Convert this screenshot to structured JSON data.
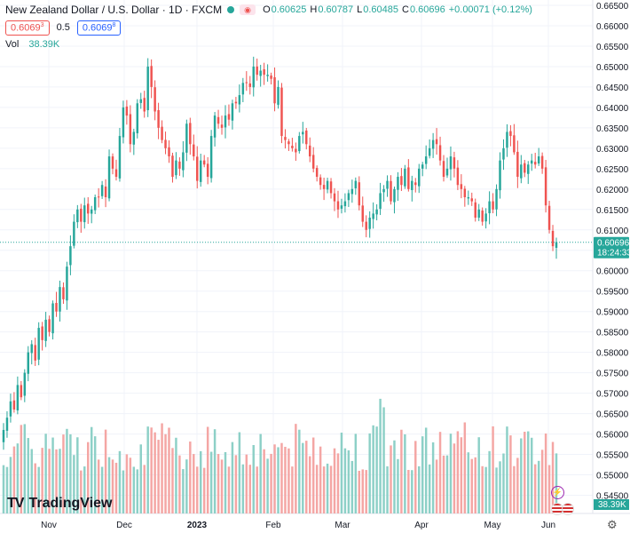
{
  "header": {
    "symbol": "New Zealand Dollar / U.S. Dollar · 1D · FXCM",
    "o_label": "O",
    "o_value": "0.60625",
    "h_label": "H",
    "h_value": "0.60787",
    "l_label": "L",
    "l_value": "0.60485",
    "c_label": "C",
    "c_value": "0.60696",
    "change": "+0.00071 (+0.12%)"
  },
  "trade": {
    "sell_price": "0.6069",
    "sell_sup": "3",
    "spread": "0.5",
    "buy_price": "0.6069",
    "buy_sup": "8"
  },
  "volume_legend": {
    "label": "Vol",
    "value": "38.39K"
  },
  "logo_text": "TradingView",
  "colors": {
    "up": "#26a69a",
    "down": "#ef5350",
    "vol_up": "#8dd0c7",
    "vol_down": "#f4a6a4",
    "last_price_badge": "#26a69a",
    "grid": "#f0f3fa"
  },
  "icons": [
    "eye-icon",
    "flash-icon",
    "flag-icon",
    "settings-icon"
  ],
  "chart_data": {
    "type": "candlestick",
    "price_axis_labels": [
      "0.66500",
      "0.66000",
      "0.65500",
      "0.65000",
      "0.64500",
      "0.64000",
      "0.63500",
      "0.63000",
      "0.62500",
      "0.62000",
      "0.61500",
      "0.61000",
      "0.60500",
      "0.60000",
      "0.59500",
      "0.59000",
      "0.58500",
      "0.58000",
      "0.57500",
      "0.57000",
      "0.56500",
      "0.56000",
      "0.55500",
      "0.55000",
      "0.54500"
    ],
    "ylim": [
      0.5425,
      0.665
    ],
    "x_labels": [
      "Nov",
      "Dec",
      "2023",
      "Feb",
      "Mar",
      "Apr",
      "May",
      "Jun"
    ],
    "last_price": 0.60696,
    "last_price_label": "0.60696",
    "countdown": "18:24:33",
    "volume_axis_label": "38.39K",
    "closes": [
      0.561,
      0.564,
      0.568,
      0.566,
      0.572,
      0.569,
      0.575,
      0.58,
      0.582,
      0.578,
      0.586,
      0.583,
      0.588,
      0.585,
      0.592,
      0.59,
      0.596,
      0.593,
      0.601,
      0.606,
      0.612,
      0.615,
      0.612,
      0.616,
      0.614,
      0.615,
      0.618,
      0.618,
      0.621,
      0.618,
      0.628,
      0.625,
      0.623,
      0.633,
      0.64,
      0.638,
      0.631,
      0.634,
      0.641,
      0.642,
      0.639,
      0.65,
      0.645,
      0.639,
      0.635,
      0.632,
      0.63,
      0.628,
      0.623,
      0.627,
      0.625,
      0.629,
      0.636,
      0.631,
      0.628,
      0.622,
      0.627,
      0.626,
      0.623,
      0.633,
      0.638,
      0.636,
      0.635,
      0.638,
      0.637,
      0.641,
      0.641,
      0.643,
      0.646,
      0.646,
      0.645,
      0.65,
      0.648,
      0.649,
      0.648,
      0.648,
      0.647,
      0.641,
      0.645,
      0.633,
      0.632,
      0.631,
      0.63,
      0.629,
      0.633,
      0.634,
      0.631,
      0.628,
      0.625,
      0.623,
      0.621,
      0.62,
      0.622,
      0.619,
      0.617,
      0.615,
      0.616,
      0.617,
      0.619,
      0.62,
      0.622,
      0.616,
      0.612,
      0.61,
      0.613,
      0.614,
      0.615,
      0.619,
      0.62,
      0.622,
      0.617,
      0.62,
      0.623,
      0.621,
      0.625,
      0.62,
      0.622,
      0.621,
      0.625,
      0.626,
      0.628,
      0.63,
      0.632,
      0.631,
      0.627,
      0.623,
      0.625,
      0.628,
      0.625,
      0.621,
      0.62,
      0.618,
      0.618,
      0.617,
      0.613,
      0.615,
      0.612,
      0.614,
      0.617,
      0.615,
      0.62,
      0.627,
      0.63,
      0.634,
      0.633,
      0.629,
      0.623,
      0.626,
      0.624,
      0.626,
      0.627,
      0.626,
      0.628,
      0.625,
      0.616,
      0.61,
      0.606,
      0.607
    ],
    "series": [
      {
        "name": "",
        "type": "candlestick"
      },
      {
        "name": "Vol",
        "type": "volume"
      }
    ]
  }
}
